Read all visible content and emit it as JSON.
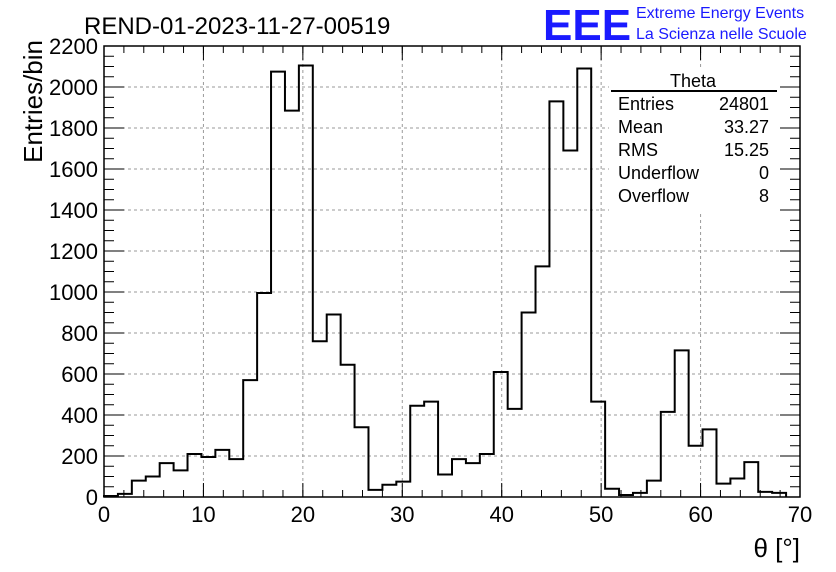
{
  "chart_data": {
    "type": "bar",
    "title": "REND-01-2023-11-27-00519",
    "xlabel": "θ [°]",
    "ylabel": "Entries/bin",
    "xlim": [
      0,
      70
    ],
    "ylim": [
      0,
      2200
    ],
    "grid": true,
    "bin_width": 1.4,
    "x_ticks": [
      0,
      10,
      20,
      30,
      40,
      50,
      60,
      70
    ],
    "y_ticks": [
      0,
      200,
      400,
      600,
      800,
      1000,
      1200,
      1400,
      1600,
      1800,
      2000,
      2200
    ],
    "values": [
      5,
      15,
      80,
      100,
      165,
      130,
      210,
      195,
      230,
      185,
      570,
      995,
      2075,
      1885,
      2105,
      760,
      890,
      645,
      340,
      35,
      60,
      75,
      445,
      465,
      110,
      185,
      165,
      210,
      610,
      430,
      900,
      1125,
      1930,
      1690,
      2090,
      465,
      40,
      10,
      20,
      80,
      415,
      715,
      250,
      330,
      65,
      90,
      170,
      25,
      20
    ]
  },
  "stats": {
    "title": "Theta",
    "rows": [
      {
        "label": "Entries",
        "value": "24801"
      },
      {
        "label": "Mean",
        "value": "33.27"
      },
      {
        "label": "RMS",
        "value": "15.25"
      },
      {
        "label": "Underflow",
        "value": "0"
      },
      {
        "label": "Overflow",
        "value": "8"
      }
    ]
  },
  "logo": {
    "mark": "EEE",
    "line1": "Extreme Energy Events",
    "line2": "La Scienza nelle Scuole",
    "color": "#1a1aff"
  }
}
